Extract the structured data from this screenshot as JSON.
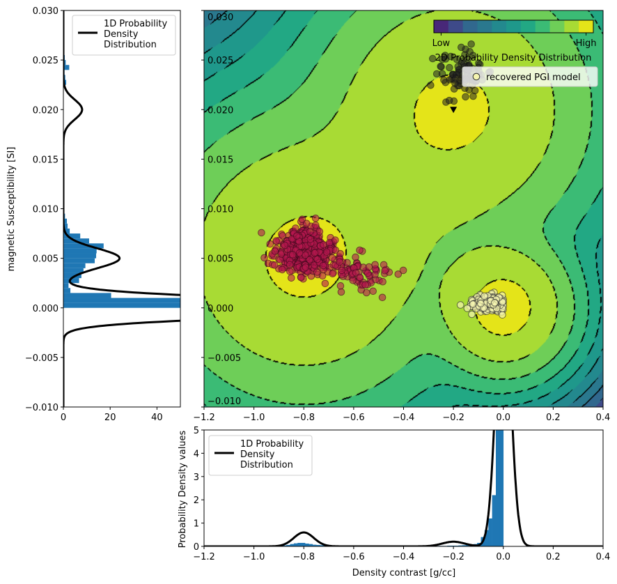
{
  "chart_data": [
    {
      "id": "main",
      "type": "heatmap",
      "title": "2D Probability Density Distribution",
      "xlim": [
        -1.2,
        0.4
      ],
      "ylim": [
        -0.01,
        0.03
      ],
      "xticks": [
        "−1.2",
        "−1.0",
        "−0.8",
        "−0.6",
        "−0.4",
        "−0.2",
        "0.0",
        "0.2",
        "0.4"
      ],
      "xtick_values": [
        -1.2,
        -1.0,
        -0.8,
        -0.6,
        -0.4,
        -0.2,
        0.0,
        0.2,
        0.4
      ],
      "yticks": [
        "−0.010",
        "−0.005",
        "0.000",
        "0.005",
        "0.010",
        "0.015",
        "0.020",
        "0.025",
        "0.030"
      ],
      "ytick_values": [
        -0.01,
        -0.005,
        0,
        0.005,
        0.01,
        0.015,
        0.02,
        0.025,
        0.03
      ],
      "colormap": [
        "#e4e419",
        "#a8db34",
        "#6ece58",
        "#3bbb75",
        "#22a884",
        "#1f988b",
        "#23898e",
        "#2a788e",
        "#31688e",
        "#3e4a89",
        "#482878"
      ],
      "colorbar": {
        "low_label": "Low",
        "high_label": "High"
      },
      "density_components": [
        {
          "mean": [
            -0.8,
            0.005
          ],
          "sigma_px": 101,
          "offset": 0.148
        },
        {
          "mean": [
            -0.2,
            0.02
          ],
          "sigma_px": 96,
          "offset": 0.135
        },
        {
          "mean": [
            0.0,
            0.0
          ],
          "sigma_px": 47,
          "offset": 0.322
        }
      ],
      "legend": {
        "label": "recovered PGI model",
        "marker_color": "#f5f5b0",
        "placement": "top-right"
      },
      "scatter_clusters": [
        {
          "center": [
            -0.8,
            0.0057
          ],
          "sd": [
            0.055,
            0.0011
          ],
          "count": 520,
          "face": "#b5174f",
          "edge": "#3a0a1a",
          "alpha": 0.6
        },
        {
          "center": [
            -0.6,
            0.0035
          ],
          "sd": [
            0.07,
            0.001
          ],
          "count": 90,
          "face": "#b5174f",
          "edge": "#3a0a1a",
          "alpha": 0.6
        },
        {
          "center": [
            -0.17,
            0.0235
          ],
          "sd": [
            0.05,
            0.0012
          ],
          "count": 90,
          "face": "#222222",
          "edge": "#111111",
          "alpha": 0.55
        },
        {
          "center": [
            -0.06,
            0.0005
          ],
          "sd": [
            0.035,
            0.0004
          ],
          "count": 260,
          "face": "#f5f5b0",
          "edge": "#333333",
          "alpha": 0.7,
          "xmax": 0.0
        }
      ],
      "triangle_marker": [
        -0.2,
        0.02
      ]
    },
    {
      "id": "left",
      "type": "bar",
      "orientation": "horizontal",
      "ylabel": "magnetic Susceptibility [SI]",
      "xlim": [
        0,
        50
      ],
      "ylim": [
        -0.01,
        0.03
      ],
      "xticks": [
        "0",
        "20",
        "40"
      ],
      "xtick_values": [
        0,
        20,
        40
      ],
      "yticks": [
        "−0.010",
        "−0.005",
        "0.000",
        "0.005",
        "0.010",
        "0.015",
        "0.020",
        "0.025",
        "0.030"
      ],
      "ytick_values": [
        -0.01,
        -0.005,
        0,
        0.005,
        0.01,
        0.015,
        0.02,
        0.025,
        0.03
      ],
      "bar_color": "#1f77b4",
      "bin_width": 0.0005,
      "hist_groups": [
        {
          "start": 0.0,
          "values": [
            60,
            60,
            20.4,
            3,
            2.2,
            6.7,
            7.7,
            8.6,
            9.4,
            13.4,
            14,
            14.2,
            17.2,
            11,
            7.2,
            2.7,
            1.8,
            1.5,
            0.7
          ]
        },
        {
          "start": 0.0225,
          "values": [
            1.2,
            0.8,
            0.5,
            2.5,
            1.0,
            0.6,
            0.4
          ]
        }
      ],
      "curve_components": [
        {
          "mean": 0,
          "sigma": 0.00085,
          "peak": 161
        },
        {
          "mean": 0.005,
          "sigma": 0.001,
          "peak": 24
        },
        {
          "mean": 0.02,
          "sigma": 0.001,
          "peak": 8
        }
      ],
      "legend": {
        "label_lines": [
          "1D Probability",
          "Density",
          "Distribution"
        ],
        "placement": "top-right"
      }
    },
    {
      "id": "bottom",
      "type": "bar",
      "xlabel": "Density contrast [g/cc]",
      "ylabel": "Probability Density values",
      "xlim": [
        -1.2,
        0.4
      ],
      "ylim": [
        0,
        5
      ],
      "xticks": [
        "−1.2",
        "−1.0",
        "−0.8",
        "−0.6",
        "−0.4",
        "−0.2",
        "0.0",
        "0.2",
        "0.4"
      ],
      "xtick_values": [
        -1.2,
        -1.0,
        -0.8,
        -0.6,
        -0.4,
        -0.2,
        0.0,
        0.2,
        0.4
      ],
      "yticks": [
        "0",
        "1",
        "2",
        "3",
        "4",
        "5"
      ],
      "ytick_values": [
        0,
        1,
        2,
        3,
        4,
        5
      ],
      "bar_color": "#1f77b4",
      "bin_width": 0.015,
      "hist_start": -0.9,
      "values": [
        0.02,
        0.04,
        0.06,
        0.1,
        0.13,
        0.15,
        0.15,
        0.12,
        0.1,
        0.07,
        0.06,
        0.05,
        0.04,
        0.03,
        0.03,
        0.02,
        0.02,
        0.02,
        0.01,
        0.01,
        0.01,
        0.01,
        0.01,
        0.01,
        0.01,
        0.01,
        0.01,
        0.01,
        0.01,
        0.01,
        0.01,
        0.01,
        0.01,
        0.01,
        0.01,
        0.01,
        0.01,
        0.01,
        0.01,
        0.01,
        0.01,
        0.01,
        0.02,
        0.02,
        0.02,
        0.03,
        0.03,
        0.03,
        0.04,
        0.05,
        0.06,
        0.08,
        0.1,
        0.15,
        0.4,
        0.7,
        1.2,
        2.2,
        5.5,
        6.0
      ],
      "curve_components": [
        {
          "mean": -0.8,
          "sigma": 0.04,
          "peak": 0.6
        },
        {
          "mean": -0.2,
          "sigma": 0.045,
          "peak": 0.2
        },
        {
          "mean": 0,
          "sigma": 0.029,
          "peak": 11.6
        }
      ],
      "legend": {
        "label_lines": [
          "1D Probability",
          "Density",
          "Distribution"
        ],
        "placement": "top-left"
      }
    }
  ]
}
